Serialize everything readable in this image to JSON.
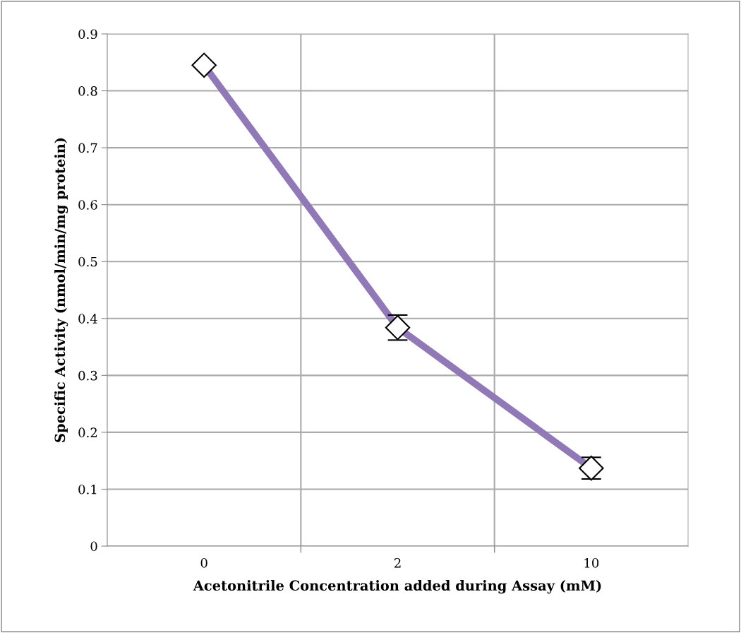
{
  "chart_data": {
    "type": "line",
    "xlabel": "Acetonitrile Concentration added during Assay (mM)",
    "ylabel": "Specific Activity (nmol/min/mg protein)",
    "categories": [
      "0",
      "2",
      "10"
    ],
    "series": [
      {
        "color": "#9079b6",
        "values": [
          0.845,
          0.384,
          0.137
        ],
        "errors": [
          null,
          0.022,
          0.019
        ]
      }
    ],
    "ylim": [
      0,
      0.9
    ],
    "yticks": [
      0,
      0.1,
      0.2,
      0.3,
      0.4,
      0.5,
      0.6,
      0.7,
      0.8,
      0.9
    ],
    "grid": true,
    "marker": "diamond",
    "line_style": "solid"
  }
}
